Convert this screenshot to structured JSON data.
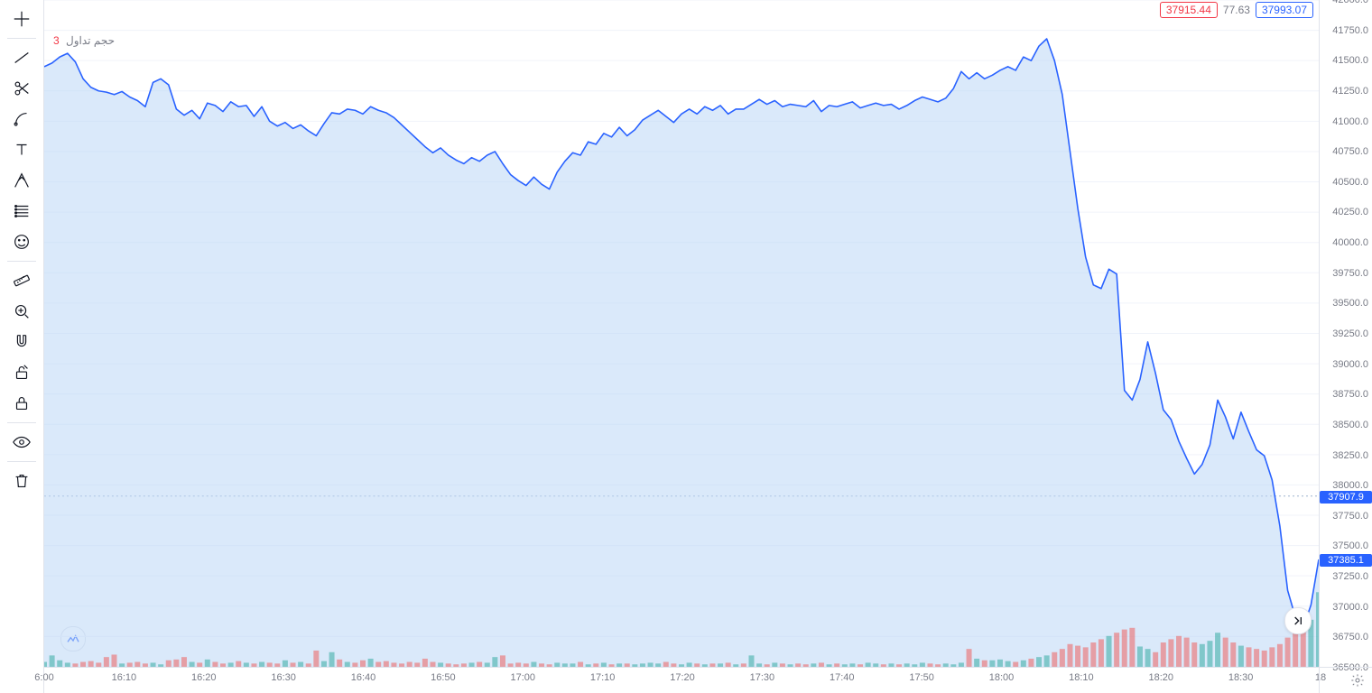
{
  "toolbar_icons": [
    "cross",
    "trend-line",
    "scissors",
    "brush-arc",
    "text",
    "pitchfork",
    "fib",
    "emoji",
    "ruler",
    "zoom",
    "magnet",
    "lock-edit",
    "lock",
    "eye",
    "trash"
  ],
  "toolbar_separators_after": [
    0,
    7,
    12,
    13
  ],
  "pills": {
    "red": {
      "text": "37915.44",
      "color": "#f23645"
    },
    "mid": {
      "text": "77.63",
      "color": "#787b86"
    },
    "blue": {
      "text": "37993.07",
      "color": "#2962ff"
    }
  },
  "volume_label": {
    "text": "حجم تداول",
    "value": "3",
    "value_color": "#f23645"
  },
  "chart": {
    "type": "area",
    "line_color": "#2962ff",
    "area_color": "#bcd7f5",
    "area_opacity": 0.55,
    "background_color": "#ffffff",
    "grid_color": "#f0f3fa",
    "y_min": 36500,
    "y_max": 42000,
    "y_step": 250,
    "dash_level": 37907.9,
    "dash_color": "#9db2ce",
    "price_tags": [
      {
        "value": 37907.9,
        "label": "37907.9",
        "bg": "#2962ff"
      },
      {
        "value": 37385.1,
        "label": "37385.1",
        "bg": "#2962ff"
      }
    ],
    "x_ticks": [
      "6:00",
      "16:10",
      "16:20",
      "16:30",
      "16:40",
      "16:50",
      "17:00",
      "17:10",
      "17:20",
      "17:30",
      "17:40",
      "17:50",
      "18:00",
      "18:10",
      "18:20",
      "18:30",
      "18"
    ],
    "series": [
      41450,
      41480,
      41530,
      41560,
      41490,
      41350,
      41280,
      41250,
      41240,
      41220,
      41245,
      41200,
      41170,
      41120,
      41320,
      41350,
      41300,
      41100,
      41050,
      41090,
      41020,
      41150,
      41130,
      41080,
      41160,
      41120,
      41130,
      41040,
      41120,
      41000,
      40960,
      40990,
      40940,
      40970,
      40920,
      40880,
      40980,
      41070,
      41060,
      41100,
      41090,
      41060,
      41120,
      41090,
      41070,
      41030,
      40970,
      40910,
      40850,
      40790,
      40740,
      40780,
      40720,
      40680,
      40650,
      40700,
      40670,
      40720,
      40750,
      40650,
      40560,
      40510,
      40470,
      40540,
      40480,
      40440,
      40580,
      40670,
      40740,
      40720,
      40830,
      40810,
      40900,
      40870,
      40950,
      40880,
      40930,
      41010,
      41050,
      41090,
      41040,
      40990,
      41060,
      41100,
      41060,
      41120,
      41090,
      41130,
      41060,
      41100,
      41100,
      41140,
      41180,
      41140,
      41170,
      41120,
      41140,
      41130,
      41120,
      41170,
      41080,
      41130,
      41120,
      41140,
      41160,
      41110,
      41130,
      41150,
      41130,
      41140,
      41100,
      41130,
      41170,
      41200,
      41180,
      41160,
      41190,
      41270,
      41410,
      41350,
      41400,
      41350,
      41380,
      41420,
      41450,
      41420,
      41530,
      41500,
      41620,
      41680,
      41500,
      41220,
      40750,
      40280,
      39880,
      39650,
      39620,
      39780,
      39740,
      38780,
      38700,
      38870,
      39180,
      38920,
      38620,
      38540,
      38360,
      38220,
      38090,
      38170,
      38330,
      38700,
      38560,
      38380,
      38600,
      38440,
      38290,
      38240,
      38040,
      37660,
      37130,
      36910,
      36820,
      37010,
      37385
    ],
    "volumes": [
      6,
      14,
      8,
      5,
      4,
      6,
      7,
      5,
      12,
      15,
      4,
      5,
      6,
      4,
      5,
      3,
      8,
      9,
      12,
      6,
      5,
      9,
      6,
      4,
      5,
      7,
      5,
      4,
      6,
      5,
      4,
      8,
      5,
      6,
      4,
      20,
      7,
      18,
      9,
      6,
      5,
      8,
      10,
      6,
      7,
      5,
      4,
      6,
      5,
      10,
      6,
      5,
      4,
      3,
      4,
      5,
      6,
      5,
      12,
      14,
      4,
      5,
      4,
      6,
      4,
      3,
      5,
      4,
      4,
      6,
      3,
      4,
      5,
      3,
      4,
      4,
      3,
      4,
      5,
      4,
      6,
      4,
      3,
      5,
      4,
      3,
      4,
      4,
      5,
      3,
      4,
      14,
      4,
      3,
      5,
      4,
      3,
      4,
      3,
      4,
      5,
      3,
      4,
      3,
      4,
      3,
      5,
      4,
      3,
      4,
      3,
      4,
      3,
      5,
      4,
      3,
      4,
      3,
      5,
      22,
      10,
      8,
      8,
      9,
      7,
      6,
      8,
      10,
      12,
      14,
      18,
      22,
      28,
      26,
      24,
      30,
      34,
      38,
      42,
      46,
      48,
      25,
      22,
      18,
      30,
      34,
      38,
      36,
      30,
      28,
      32,
      42,
      36,
      30,
      26,
      24,
      22,
      20,
      24,
      28,
      36,
      44,
      52,
      58,
      92
    ],
    "volume_dir": [
      1,
      1,
      1,
      1,
      0,
      0,
      0,
      0,
      0,
      0,
      1,
      0,
      0,
      0,
      1,
      1,
      0,
      0,
      0,
      1,
      0,
      1,
      0,
      0,
      1,
      0,
      1,
      0,
      1,
      0,
      0,
      1,
      0,
      1,
      0,
      0,
      1,
      1,
      0,
      1,
      0,
      0,
      1,
      0,
      0,
      0,
      0,
      0,
      0,
      0,
      0,
      1,
      0,
      0,
      0,
      1,
      0,
      1,
      1,
      0,
      0,
      0,
      0,
      1,
      0,
      0,
      1,
      1,
      1,
      0,
      1,
      0,
      1,
      0,
      1,
      0,
      1,
      1,
      1,
      1,
      0,
      0,
      1,
      1,
      0,
      1,
      0,
      1,
      0,
      1,
      0,
      1,
      1,
      0,
      1,
      0,
      1,
      0,
      0,
      1,
      0,
      1,
      0,
      1,
      1,
      0,
      1,
      1,
      0,
      1,
      0,
      1,
      1,
      1,
      0,
      0,
      1,
      1,
      1,
      0,
      1,
      0,
      1,
      1,
      1,
      0,
      1,
      0,
      1,
      1,
      0,
      0,
      0,
      0,
      0,
      0,
      0,
      1,
      0,
      0,
      0,
      1,
      1,
      0,
      0,
      0,
      0,
      0,
      0,
      1,
      1,
      1,
      0,
      0,
      1,
      0,
      0,
      0,
      0,
      0,
      0,
      0,
      0,
      1,
      1
    ],
    "volume_max": 100,
    "volume_up_color": "#26a69a",
    "volume_down_color": "#ef5350"
  }
}
